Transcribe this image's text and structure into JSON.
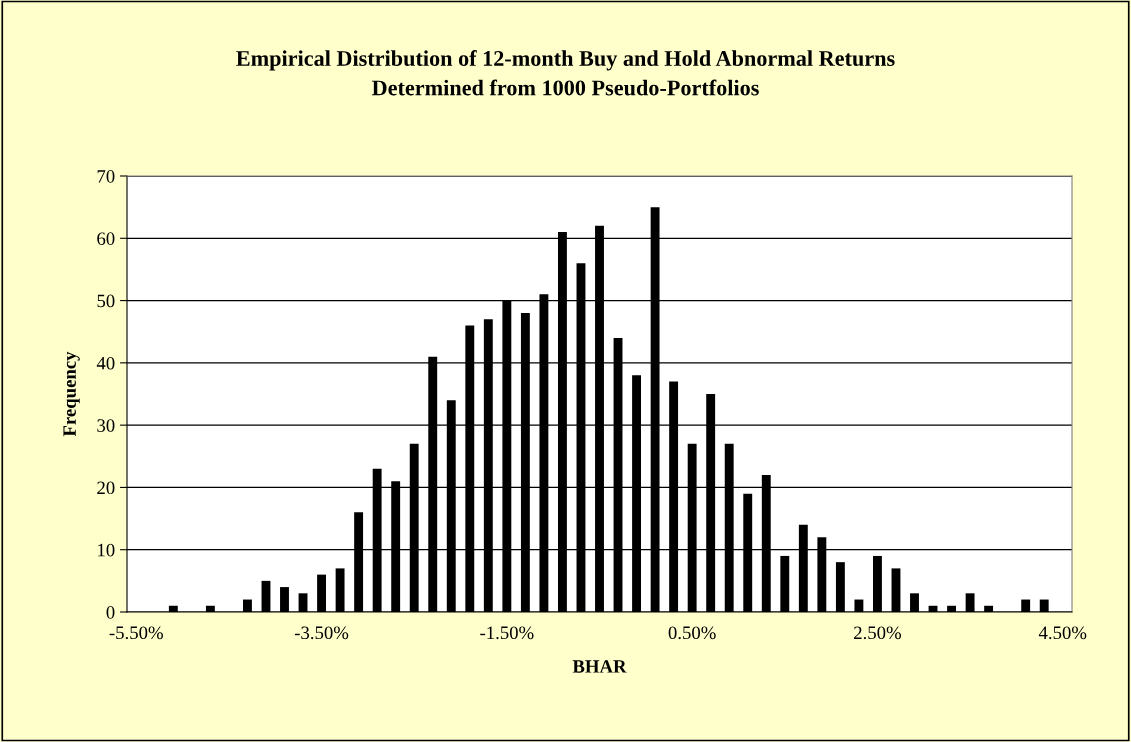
{
  "chart_data": {
    "type": "bar",
    "title": "Empirical Distribution of 12-month Buy and Hold Abnormal Returns\nDetermined from 1000 Pseudo-Portfolios",
    "xlabel": "BHAR",
    "ylabel": "Frequency",
    "categories": [
      "-5.50%",
      null,
      null,
      null,
      null,
      null,
      null,
      null,
      null,
      null,
      "-3.50%",
      null,
      null,
      null,
      null,
      null,
      null,
      null,
      null,
      null,
      "-1.50%",
      null,
      null,
      null,
      null,
      null,
      null,
      null,
      null,
      null,
      "0.50%",
      null,
      null,
      null,
      null,
      null,
      null,
      null,
      null,
      null,
      "2.50%",
      null,
      null,
      null,
      null,
      null,
      null,
      null,
      null,
      null,
      "4.50%"
    ],
    "values": [
      0,
      0,
      1,
      0,
      1,
      0,
      2,
      5,
      4,
      3,
      6,
      7,
      16,
      23,
      21,
      27,
      41,
      34,
      46,
      47,
      50,
      48,
      51,
      61,
      56,
      62,
      44,
      38,
      65,
      37,
      27,
      35,
      27,
      19,
      22,
      9,
      14,
      12,
      8,
      2,
      9,
      7,
      3,
      1,
      1,
      3,
      1,
      0,
      2,
      2,
      0
    ],
    "color": "#000000",
    "ylim": [
      0,
      70
    ],
    "yticks": [
      0,
      10,
      20,
      30,
      40,
      50,
      60,
      70
    ],
    "grid": "y",
    "legend": false
  }
}
